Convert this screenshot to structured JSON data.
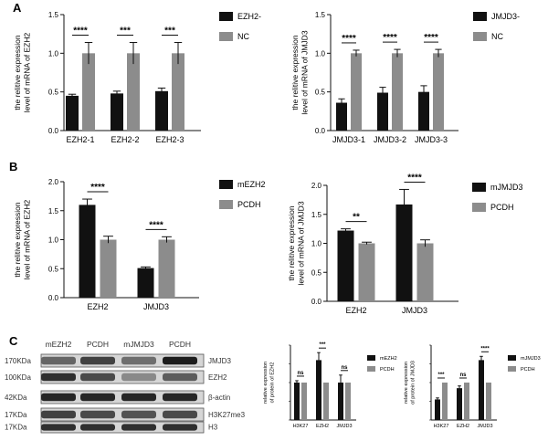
{
  "panel_labels": [
    "A",
    "B",
    "C"
  ],
  "colors": {
    "black_bar": "#111111",
    "gray_bar": "#8c8c8c"
  },
  "chart_data": [
    {
      "id": "A1",
      "type": "bar",
      "categories": [
        "EZH2-1",
        "EZH2-2",
        "EZH2-3"
      ],
      "series": [
        {
          "name": "EZH2-",
          "values": [
            0.45,
            0.48,
            0.51
          ],
          "errors": [
            0.02,
            0.03,
            0.04
          ],
          "color": "#111111"
        },
        {
          "name": "NC",
          "values": [
            1.0,
            1.0,
            1.0
          ],
          "errors": [
            0.14,
            0.14,
            0.14
          ],
          "color": "#8c8c8c"
        }
      ],
      "ylabel_lines": [
        "the relitive expression",
        "level of mRNA of EZH2"
      ],
      "ylim": [
        0,
        1.5
      ],
      "yticks": [
        "0.0",
        "0.5",
        "1.0",
        "1.5"
      ],
      "significance": [
        "****",
        "***",
        "***"
      ],
      "legend": "right"
    },
    {
      "id": "A2",
      "type": "bar",
      "categories": [
        "JMJD3-1",
        "JMJD3-2",
        "JMJD3-3"
      ],
      "series": [
        {
          "name": "JMJD3-",
          "values": [
            0.36,
            0.49,
            0.5
          ],
          "errors": [
            0.05,
            0.07,
            0.08
          ],
          "color": "#111111"
        },
        {
          "name": "NC",
          "values": [
            1.0,
            1.0,
            1.0
          ],
          "errors": [
            0.04,
            0.05,
            0.05
          ],
          "color": "#8c8c8c"
        }
      ],
      "ylabel_lines": [
        "the relitive expression",
        "level of mRNA of JMJD3"
      ],
      "ylim": [
        0,
        1.5
      ],
      "yticks": [
        "0.0",
        "0.5",
        "1.0",
        "1.5"
      ],
      "significance": [
        "****",
        "****",
        "****"
      ],
      "legend": "right"
    },
    {
      "id": "B1",
      "type": "bar",
      "categories": [
        "EZH2",
        "JMJD3"
      ],
      "series": [
        {
          "name": "mEZH2",
          "values": [
            1.6,
            0.51
          ],
          "errors": [
            0.1,
            0.02
          ],
          "color": "#111111"
        },
        {
          "name": "PCDH",
          "values": [
            1.0,
            1.0
          ],
          "errors": [
            0.06,
            0.05
          ],
          "color": "#8c8c8c"
        }
      ],
      "ylabel_lines": [
        "the relitive expression",
        "level of mRNA of EZH2"
      ],
      "ylim": [
        0,
        2.0
      ],
      "yticks": [
        "0.0",
        "0.5",
        "1.0",
        "1.5",
        "2.0"
      ],
      "significance": [
        "****",
        "****"
      ],
      "legend": "right"
    },
    {
      "id": "B2",
      "type": "bar",
      "categories": [
        "EZH2",
        "JMJD3"
      ],
      "series": [
        {
          "name": "mJMJD3",
          "values": [
            1.22,
            1.67
          ],
          "errors": [
            0.03,
            0.26
          ],
          "color": "#111111"
        },
        {
          "name": "PCDH",
          "values": [
            1.0,
            1.0
          ],
          "errors": [
            0.02,
            0.06
          ],
          "color": "#8c8c8c"
        }
      ],
      "ylabel_lines": [
        "the relitive expression",
        "level of mRNA of JMJD3"
      ],
      "ylim": [
        0,
        2.0
      ],
      "yticks": [
        "0.0",
        "0.5",
        "1.0",
        "1.5",
        "2.0"
      ],
      "significance": [
        "**",
        "****"
      ],
      "legend": "right"
    },
    {
      "id": "C1",
      "type": "bar",
      "categories": [
        "H3K27",
        "EZH2",
        "JMJD3"
      ],
      "series": [
        {
          "name": "mEZH2",
          "values": [
            1.0,
            1.6,
            1.0
          ],
          "errors": [
            0.05,
            0.2,
            0.2
          ],
          "color": "#111111"
        },
        {
          "name": "PCDH",
          "values": [
            1.0,
            1.0,
            1.0
          ],
          "errors": [
            0.0,
            0.0,
            0.0
          ],
          "color": "#8c8c8c"
        }
      ],
      "ylabel_lines": [
        "relative expression",
        "of protein of EZH2"
      ],
      "ylim": [
        0,
        2.0
      ],
      "significance": [
        "ns",
        "***",
        "ns"
      ],
      "legend": "right"
    },
    {
      "id": "C2",
      "type": "bar",
      "categories": [
        "H3K27",
        "EZH2",
        "JMJD3"
      ],
      "series": [
        {
          "name": "mJMJD3",
          "values": [
            0.55,
            0.85,
            1.6
          ],
          "errors": [
            0.04,
            0.06,
            0.1
          ],
          "color": "#111111"
        },
        {
          "name": "PCDH",
          "values": [
            1.0,
            1.0,
            1.0
          ],
          "errors": [
            0.0,
            0.0,
            0.0
          ],
          "color": "#8c8c8c"
        }
      ],
      "ylabel_lines": [
        "relative expression",
        "of protein of JMJD3"
      ],
      "ylim": [
        0,
        2.0
      ],
      "significance": [
        "***",
        "ns",
        "****"
      ],
      "legend": "right"
    }
  ],
  "western_blot": {
    "lane_labels": [
      "mEZH2",
      "PCDH",
      "mJMJD3",
      "PCDH"
    ],
    "rows": [
      {
        "kda": "170KDa",
        "protein": "JMJD3",
        "intensities": [
          0.55,
          0.75,
          0.5,
          0.95
        ]
      },
      {
        "kda": "100KDa",
        "protein": "EZH2",
        "intensities": [
          0.85,
          0.7,
          0.35,
          0.6
        ]
      },
      {
        "kda": "42KDa",
        "protein": "β-actin",
        "intensities": [
          0.9,
          0.9,
          0.9,
          0.9
        ]
      },
      {
        "kda": "17KDa",
        "protein": "H3K27me3",
        "intensities": [
          0.75,
          0.7,
          0.65,
          0.7
        ]
      },
      {
        "kda": "17KDa",
        "protein": "H3",
        "intensities": [
          0.85,
          0.85,
          0.85,
          0.85
        ]
      }
    ]
  }
}
